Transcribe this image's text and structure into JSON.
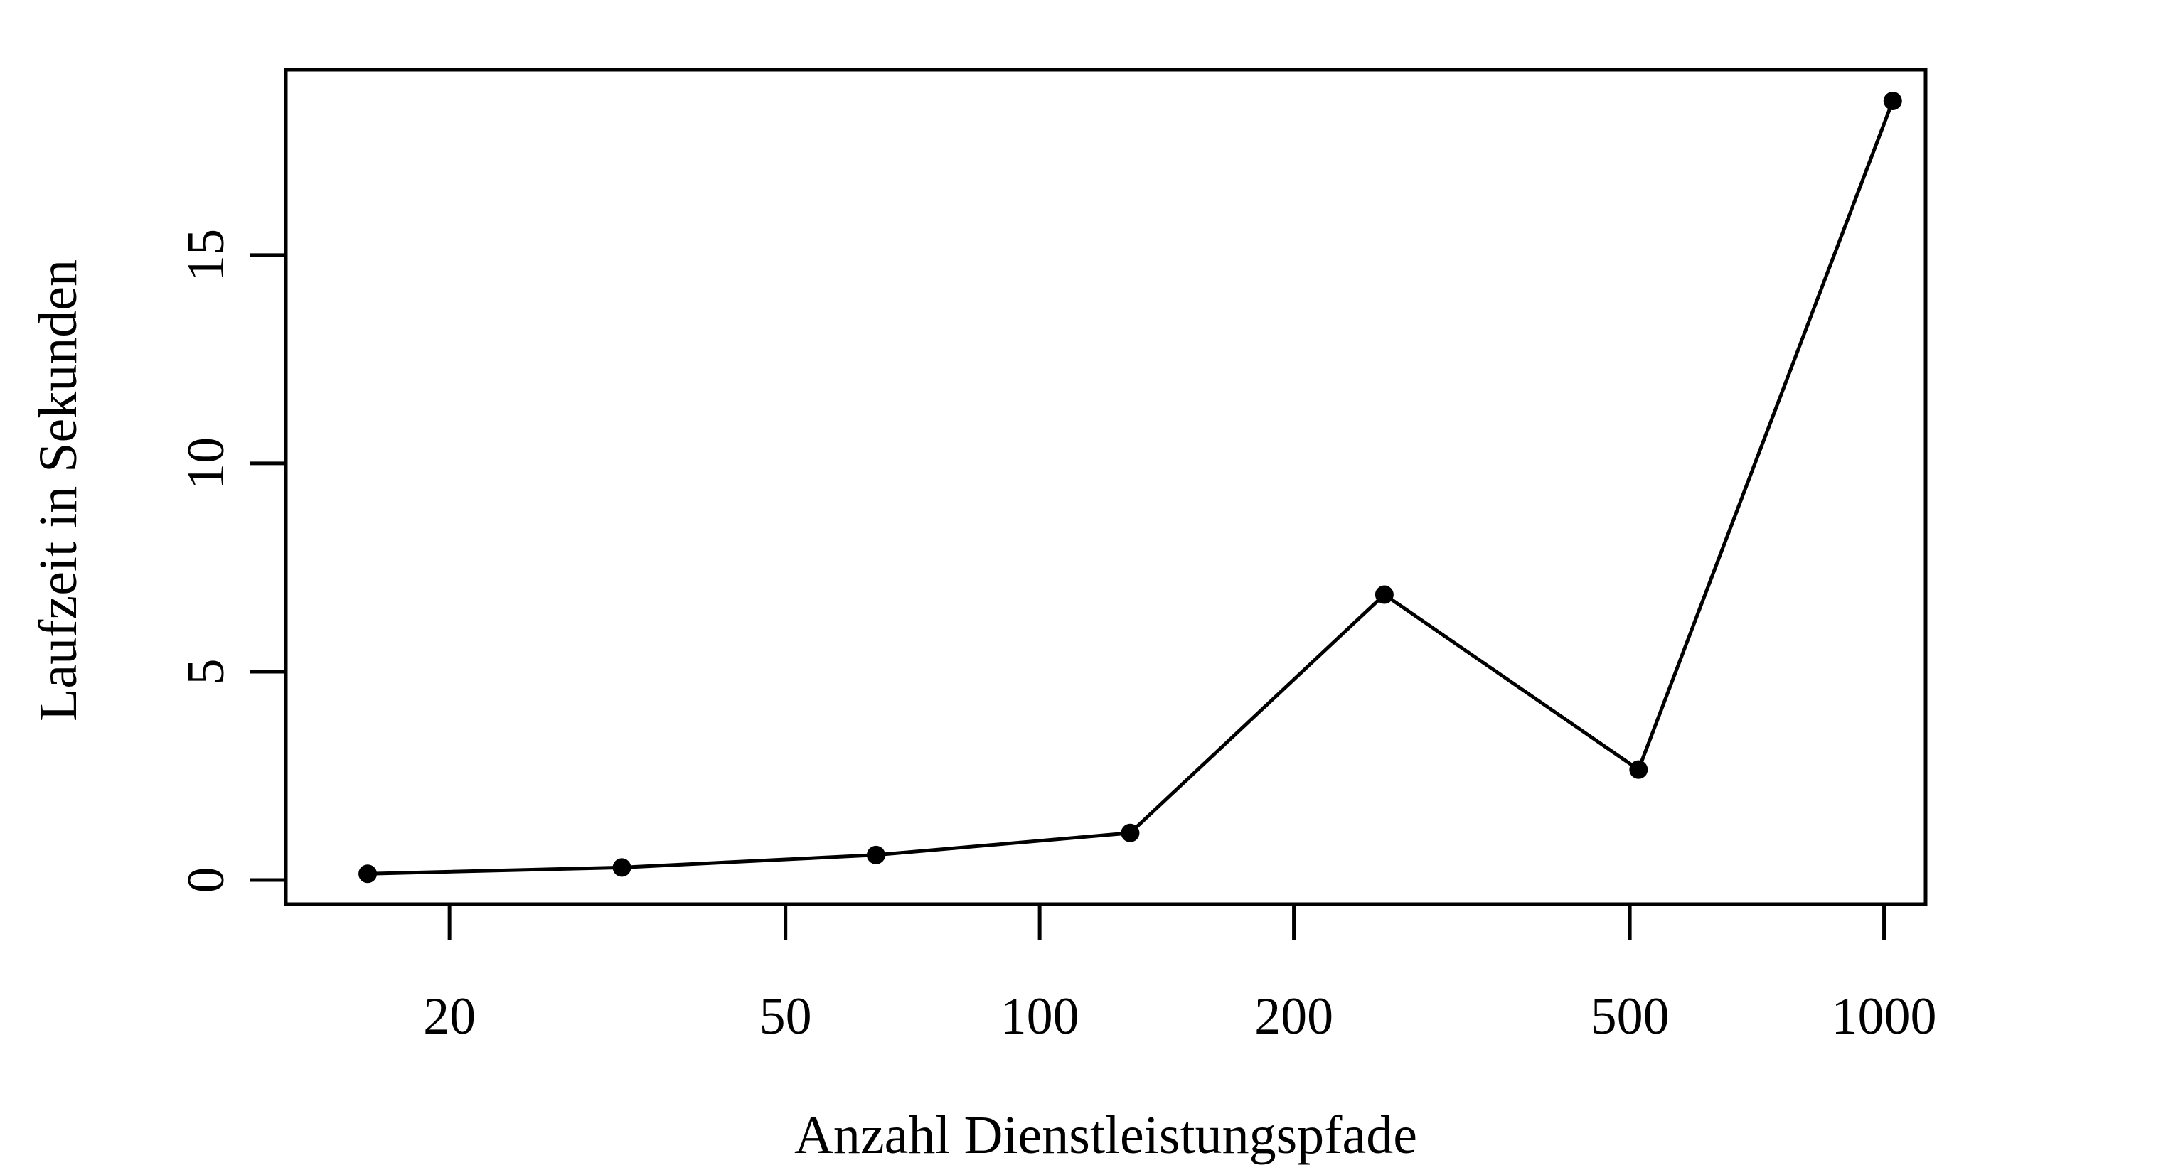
{
  "chart_data": {
    "type": "line",
    "title": "",
    "xlabel": "Anzahl Dienstleistungspfade",
    "ylabel": "Laufzeit in Sekunden",
    "x_scale": "log",
    "xlim": [
      12.8,
      1120
    ],
    "ylim": [
      -0.58,
      19.45
    ],
    "x_ticks": [
      {
        "value": 20,
        "label": "20"
      },
      {
        "value": 50,
        "label": "50"
      },
      {
        "value": 100,
        "label": "100"
      },
      {
        "value": 200,
        "label": "200"
      },
      {
        "value": 500,
        "label": "500"
      },
      {
        "value": 1000,
        "label": "1000"
      }
    ],
    "y_ticks": [
      {
        "value": 0,
        "label": "0"
      },
      {
        "value": 5,
        "label": "5"
      },
      {
        "value": 10,
        "label": "10"
      },
      {
        "value": 15,
        "label": "15"
      }
    ],
    "grid": false,
    "legend": "none",
    "colors": {
      "line": "#000000",
      "points": "#000000",
      "frame": "#000000"
    },
    "series": [
      {
        "x": [
          16,
          32,
          64,
          128,
          256,
          512,
          1024
        ],
        "y": [
          0.15,
          0.3,
          0.6,
          1.13,
          6.85,
          2.65,
          18.7
        ]
      }
    ]
  }
}
